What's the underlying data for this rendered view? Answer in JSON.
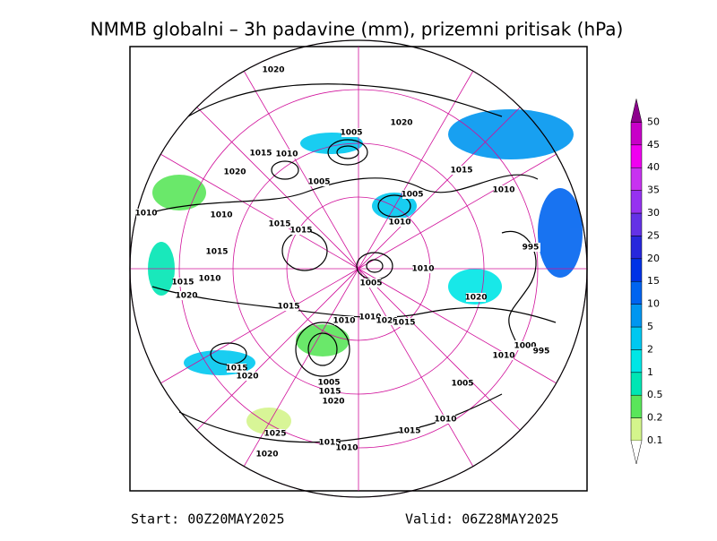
{
  "header": {
    "title": "NMMB globalni – 3h padavine (mm), prizemni pritisak (hPa)"
  },
  "footer": {
    "start": "Start: 00Z20MAY2025",
    "valid": "Valid: 06Z28MAY2025"
  },
  "legend": {
    "items": [
      {
        "label": "0.1",
        "color": "#d4f58c"
      },
      {
        "label": "0.2",
        "color": "#5ae65a"
      },
      {
        "label": "0.5",
        "color": "#00e6b4"
      },
      {
        "label": "1",
        "color": "#00e6e6"
      },
      {
        "label": "2",
        "color": "#00c8f0"
      },
      {
        "label": "5",
        "color": "#0096f0"
      },
      {
        "label": "10",
        "color": "#0064f0"
      },
      {
        "label": "15",
        "color": "#0032e6"
      },
      {
        "label": "20",
        "color": "#2828dc"
      },
      {
        "label": "25",
        "color": "#6432e6"
      },
      {
        "label": "30",
        "color": "#9632f0"
      },
      {
        "label": "35",
        "color": "#c832f0"
      },
      {
        "label": "40",
        "color": "#f000f0"
      },
      {
        "label": "45",
        "color": "#c800c8"
      },
      {
        "label": "50",
        "color": "#8c008c"
      }
    ]
  },
  "isobars": [
    "1020",
    "1005",
    "1020",
    "1015",
    "1010",
    "1020",
    "1005",
    "1015",
    "1005",
    "1010",
    "1010",
    "1010",
    "1010",
    "1015",
    "1015",
    "995",
    "1015",
    "1015",
    "1010",
    "1010",
    "1005",
    "1020",
    "1020",
    "1015",
    "1010",
    "1010",
    "1020",
    "1015",
    "1000",
    "995",
    "1010",
    "1015",
    "1020",
    "1005",
    "1015",
    "1020",
    "1005",
    "1010",
    "1015",
    "1025",
    "1015",
    "1010",
    "1020"
  ]
}
